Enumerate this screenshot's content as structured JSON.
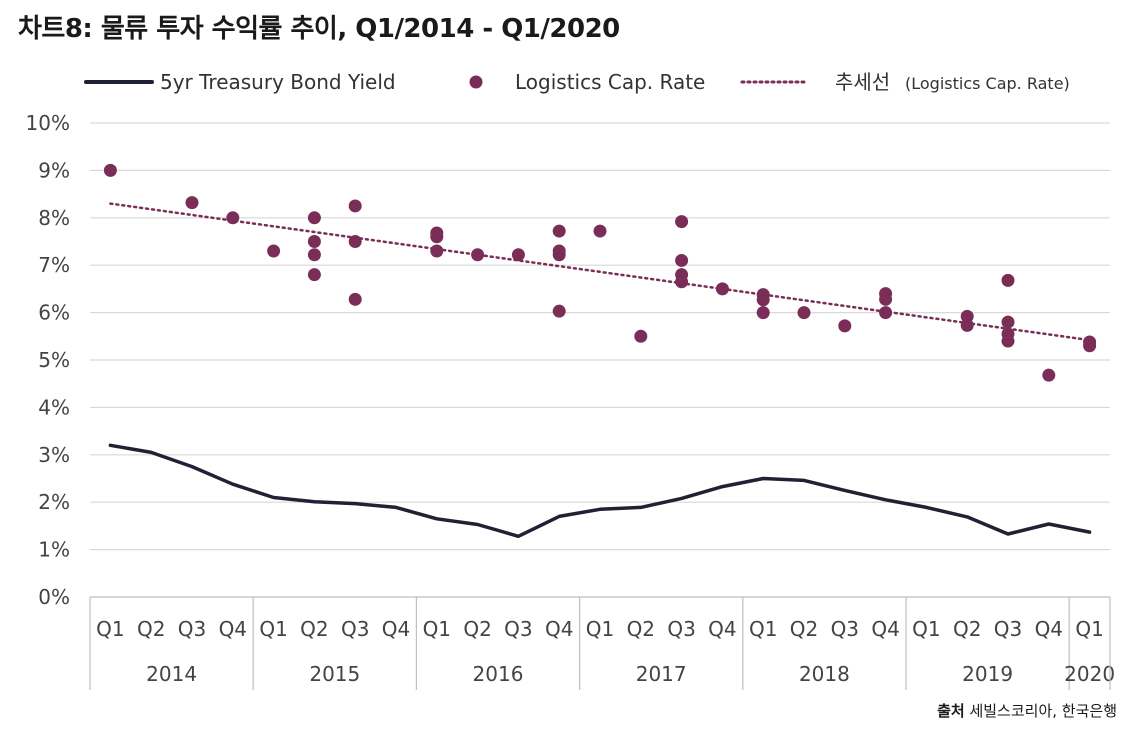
{
  "title": "차트8: 물류 투자 수익률 추이, Q1/2014 - Q1/2020",
  "source": {
    "label": "출처",
    "text": " 세빌스코리아, 한국은행"
  },
  "colors": {
    "yield_line": "#1f2235",
    "cap_rate": "#7a2e57",
    "grid": "#d9d9d9",
    "axis": "#bfbfbf"
  },
  "chart_data": {
    "type": "scatter",
    "y_axis": {
      "min": 0,
      "max": 10,
      "step": 1,
      "unit": "%",
      "tick_labels": [
        "0%",
        "1%",
        "2%",
        "3%",
        "4%",
        "5%",
        "6%",
        "7%",
        "8%",
        "9%",
        "10%"
      ]
    },
    "x_axis": {
      "quarters": [
        "Q1",
        "Q2",
        "Q3",
        "Q4",
        "Q1",
        "Q2",
        "Q3",
        "Q4",
        "Q1",
        "Q2",
        "Q3",
        "Q4",
        "Q1",
        "Q2",
        "Q3",
        "Q4",
        "Q1",
        "Q2",
        "Q3",
        "Q4",
        "Q1",
        "Q2",
        "Q3",
        "Q4",
        "Q1"
      ],
      "years": [
        {
          "label": "2014",
          "quarters": 4
        },
        {
          "label": "2015",
          "quarters": 4
        },
        {
          "label": "2016",
          "quarters": 4
        },
        {
          "label": "2017",
          "quarters": 4
        },
        {
          "label": "2018",
          "quarters": 4
        },
        {
          "label": "2019",
          "quarters": 4
        },
        {
          "label": "2020",
          "quarters": 1
        }
      ]
    },
    "grid": true,
    "legend": {
      "position": "top",
      "items": [
        {
          "name": "5yr Treasury Bond Yield",
          "style": "line"
        },
        {
          "name": "Logistics Cap. Rate",
          "style": "marker"
        },
        {
          "name": "추세선",
          "suffix": "(Logistics Cap. Rate)",
          "style": "dotted"
        }
      ]
    },
    "series": [
      {
        "name": "5yr Treasury Bond Yield",
        "kind": "line",
        "values": [
          3.2,
          3.05,
          2.75,
          2.38,
          2.1,
          2.01,
          1.97,
          1.89,
          1.65,
          1.53,
          1.28,
          1.7,
          1.85,
          1.89,
          2.08,
          2.33,
          2.5,
          2.46,
          2.25,
          2.05,
          1.89,
          1.69,
          1.33,
          1.54,
          1.37
        ]
      },
      {
        "name": "Logistics Cap. Rate",
        "kind": "scatter",
        "points": [
          {
            "q": 0,
            "y": 9.0
          },
          {
            "q": 2,
            "y": 8.32
          },
          {
            "q": 3,
            "y": 8.0
          },
          {
            "q": 4,
            "y": 7.3
          },
          {
            "q": 5,
            "y": 8.0
          },
          {
            "q": 5,
            "y": 7.5
          },
          {
            "q": 5,
            "y": 7.22
          },
          {
            "q": 5,
            "y": 6.8
          },
          {
            "q": 6,
            "y": 8.25
          },
          {
            "q": 6,
            "y": 7.5
          },
          {
            "q": 6,
            "y": 6.28
          },
          {
            "q": 8,
            "y": 7.68
          },
          {
            "q": 8,
            "y": 7.6
          },
          {
            "q": 8,
            "y": 7.3
          },
          {
            "q": 9,
            "y": 7.22
          },
          {
            "q": 10,
            "y": 7.22
          },
          {
            "q": 11,
            "y": 7.72
          },
          {
            "q": 11,
            "y": 7.3
          },
          {
            "q": 11,
            "y": 7.22
          },
          {
            "q": 11,
            "y": 6.03
          },
          {
            "q": 12,
            "y": 7.72
          },
          {
            "q": 13,
            "y": 5.5
          },
          {
            "q": 14,
            "y": 7.92
          },
          {
            "q": 14,
            "y": 7.1
          },
          {
            "q": 14,
            "y": 6.8
          },
          {
            "q": 14,
            "y": 6.65
          },
          {
            "q": 15,
            "y": 6.5
          },
          {
            "q": 16,
            "y": 6.38
          },
          {
            "q": 16,
            "y": 6.27
          },
          {
            "q": 16,
            "y": 6.0
          },
          {
            "q": 17,
            "y": 6.0
          },
          {
            "q": 18,
            "y": 5.72
          },
          {
            "q": 19,
            "y": 6.4
          },
          {
            "q": 19,
            "y": 6.28
          },
          {
            "q": 19,
            "y": 6.0
          },
          {
            "q": 21,
            "y": 5.92
          },
          {
            "q": 21,
            "y": 5.73
          },
          {
            "q": 22,
            "y": 6.68
          },
          {
            "q": 22,
            "y": 5.8
          },
          {
            "q": 22,
            "y": 5.55
          },
          {
            "q": 22,
            "y": 5.4
          },
          {
            "q": 23,
            "y": 4.68
          },
          {
            "q": 24,
            "y": 5.38
          },
          {
            "q": 24,
            "y": 5.3
          }
        ]
      },
      {
        "name": "추세선(Logistics Cap. Rate)",
        "kind": "trendline",
        "start": 8.3,
        "end": 5.42
      }
    ]
  }
}
